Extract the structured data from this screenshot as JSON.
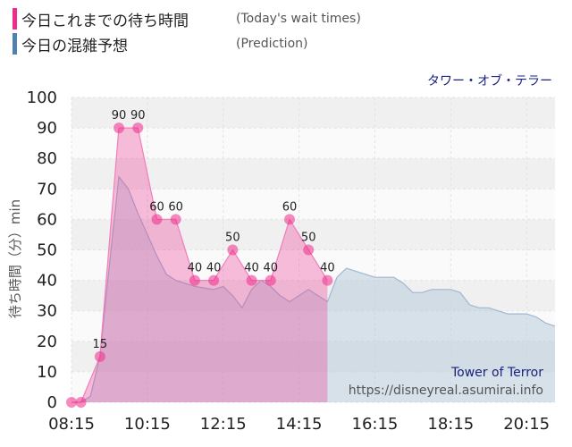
{
  "legend": [
    {
      "label_jp": "今日これまでの待ち時間",
      "label_en": "(Today's wait times)",
      "color": "#ee2c8c"
    },
    {
      "label_jp": "今日の混雑予想",
      "label_en": "(Prediction)",
      "color": "#4f80b3"
    }
  ],
  "attraction_jp": "タワー・オブ・テラー",
  "watermark": {
    "name": "Tower of Terror",
    "url": "https://disneyreal.asumirai.info"
  },
  "chart_data": {
    "type": "area",
    "ylabel": "待ち時間（分）min",
    "ylim": [
      0,
      100
    ],
    "yticks": [
      0,
      10,
      20,
      30,
      40,
      50,
      60,
      70,
      80,
      90,
      100
    ],
    "xticks": [
      "08:15",
      "10:15",
      "12:15",
      "14:15",
      "16:15",
      "18:15",
      "20:15"
    ],
    "xlim": [
      "08:15",
      "21:00"
    ],
    "grid": true,
    "series": [
      {
        "name": "今日これまでの待ち時間",
        "color": "#ee2c8c",
        "points": [
          {
            "x": "08:15",
            "y": 0
          },
          {
            "x": "08:30",
            "y": 0
          },
          {
            "x": "09:00",
            "y": 15
          },
          {
            "x": "09:30",
            "y": 90
          },
          {
            "x": "10:00",
            "y": 90
          },
          {
            "x": "10:30",
            "y": 60
          },
          {
            "x": "11:00",
            "y": 60
          },
          {
            "x": "11:30",
            "y": 40
          },
          {
            "x": "12:00",
            "y": 40
          },
          {
            "x": "12:30",
            "y": 50
          },
          {
            "x": "13:00",
            "y": 40
          },
          {
            "x": "13:30",
            "y": 40
          },
          {
            "x": "14:00",
            "y": 60
          },
          {
            "x": "14:30",
            "y": 50
          },
          {
            "x": "15:00",
            "y": 40
          }
        ]
      },
      {
        "name": "今日の混雑予想",
        "color": "#4f80b3",
        "points": [
          {
            "x": "08:15",
            "y": 0
          },
          {
            "x": "08:30",
            "y": 0
          },
          {
            "x": "08:45",
            "y": 2
          },
          {
            "x": "09:00",
            "y": 15
          },
          {
            "x": "09:15",
            "y": 45
          },
          {
            "x": "09:30",
            "y": 74
          },
          {
            "x": "09:45",
            "y": 70
          },
          {
            "x": "10:00",
            "y": 62
          },
          {
            "x": "10:15",
            "y": 55
          },
          {
            "x": "10:30",
            "y": 48
          },
          {
            "x": "10:45",
            "y": 42
          },
          {
            "x": "11:00",
            "y": 40
          },
          {
            "x": "11:15",
            "y": 39
          },
          {
            "x": "11:30",
            "y": 38
          },
          {
            "x": "11:45",
            "y": 37.5
          },
          {
            "x": "12:00",
            "y": 37
          },
          {
            "x": "12:15",
            "y": 38
          },
          {
            "x": "12:30",
            "y": 35
          },
          {
            "x": "12:45",
            "y": 31
          },
          {
            "x": "13:00",
            "y": 37
          },
          {
            "x": "13:15",
            "y": 40
          },
          {
            "x": "13:30",
            "y": 38
          },
          {
            "x": "13:45",
            "y": 35
          },
          {
            "x": "14:00",
            "y": 33
          },
          {
            "x": "14:15",
            "y": 35
          },
          {
            "x": "14:30",
            "y": 37
          },
          {
            "x": "14:45",
            "y": 35
          },
          {
            "x": "15:00",
            "y": 33
          },
          {
            "x": "15:15",
            "y": 41
          },
          {
            "x": "15:30",
            "y": 44
          },
          {
            "x": "15:45",
            "y": 43
          },
          {
            "x": "16:00",
            "y": 42
          },
          {
            "x": "16:15",
            "y": 41
          },
          {
            "x": "16:30",
            "y": 41
          },
          {
            "x": "16:45",
            "y": 41
          },
          {
            "x": "17:00",
            "y": 39
          },
          {
            "x": "17:15",
            "y": 36
          },
          {
            "x": "17:30",
            "y": 36
          },
          {
            "x": "17:45",
            "y": 37
          },
          {
            "x": "18:00",
            "y": 37
          },
          {
            "x": "18:15",
            "y": 37
          },
          {
            "x": "18:30",
            "y": 36
          },
          {
            "x": "18:45",
            "y": 32
          },
          {
            "x": "19:00",
            "y": 31
          },
          {
            "x": "19:15",
            "y": 31
          },
          {
            "x": "19:30",
            "y": 30
          },
          {
            "x": "19:45",
            "y": 29
          },
          {
            "x": "20:00",
            "y": 29
          },
          {
            "x": "20:15",
            "y": 29
          },
          {
            "x": "20:30",
            "y": 28
          },
          {
            "x": "20:45",
            "y": 26
          },
          {
            "x": "21:00",
            "y": 25
          }
        ]
      }
    ]
  }
}
